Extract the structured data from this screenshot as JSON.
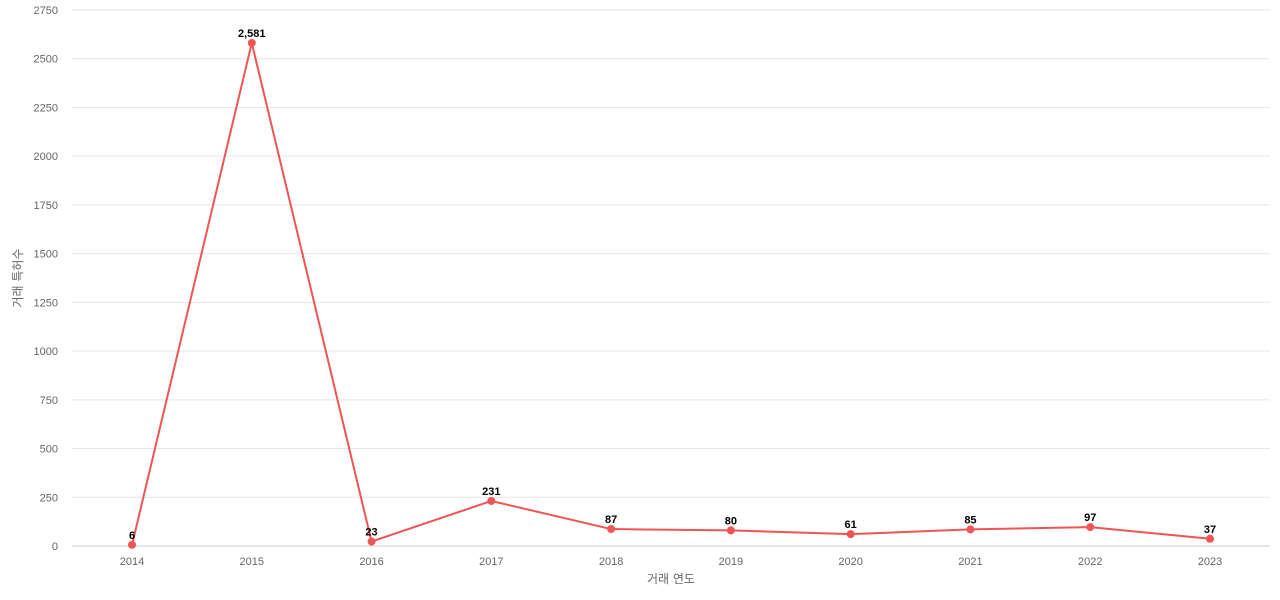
{
  "chart_data": {
    "type": "line",
    "title": "",
    "xlabel": "거래 연도",
    "ylabel": "거래 특허수",
    "categories": [
      "2014",
      "2015",
      "2016",
      "2017",
      "2018",
      "2019",
      "2020",
      "2021",
      "2022",
      "2023"
    ],
    "series": [
      {
        "values": [
          6,
          2581,
          23,
          231,
          87,
          80,
          61,
          85,
          97,
          37
        ],
        "value_labels": [
          "6",
          "2,581",
          "23",
          "231",
          "87",
          "80",
          "61",
          "85",
          "97",
          "37"
        ],
        "color": "#f05454"
      }
    ],
    "ylim": [
      0,
      2750
    ],
    "yticks": [
      0,
      250,
      500,
      750,
      1000,
      1250,
      1500,
      1750,
      2000,
      2250,
      2500,
      2750
    ],
    "grid": true,
    "legend": "none"
  }
}
